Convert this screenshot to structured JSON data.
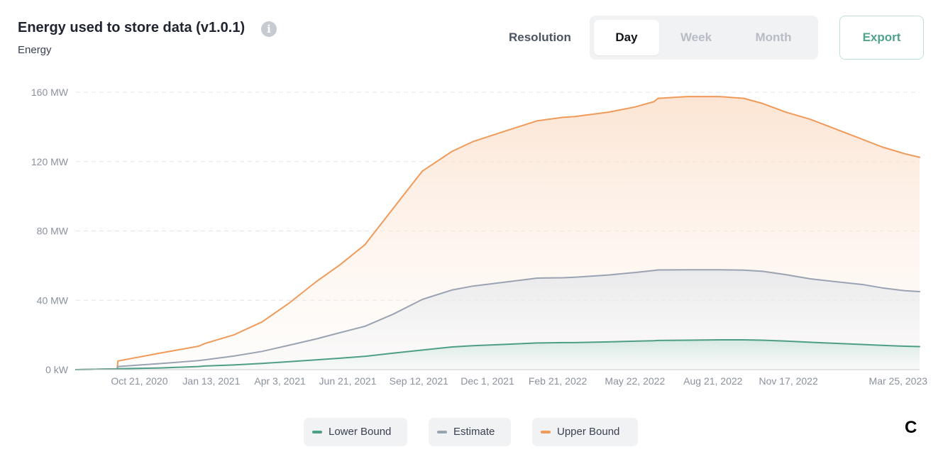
{
  "header": {
    "title": "Energy used to store data (v1.0.1)",
    "info_icon": "info-icon",
    "info_glyph": "i",
    "subtitle": "Energy"
  },
  "controls": {
    "resolution_label": "Resolution",
    "options": [
      "Day",
      "Week",
      "Month"
    ],
    "selected": "Day",
    "export_label": "Export"
  },
  "legend": [
    {
      "label": "Lower Bound",
      "color": "#4e9e87"
    },
    {
      "label": "Estimate",
      "color": "#9aa3b2"
    },
    {
      "label": "Upper Bound",
      "color": "#f09a5a"
    }
  ],
  "corner_label": "C",
  "chart_data": {
    "type": "area",
    "x_type": "date",
    "xlim": [
      "2020-08-08",
      "2023-04-19"
    ],
    "ylim": [
      0,
      160
    ],
    "yticks": [
      0,
      40,
      80,
      120,
      160
    ],
    "ytick_labels": [
      "0 kW",
      "40 MW",
      "80 MW",
      "120 MW",
      "160 MW"
    ],
    "xticks": [
      "2020-10-21",
      "2021-01-13",
      "2021-04-03",
      "2021-06-21",
      "2021-09-12",
      "2021-12-01",
      "2022-02-21",
      "2022-05-22",
      "2022-08-21",
      "2022-11-17",
      "2023-03-25"
    ],
    "xtick_labels": [
      "Oct 21, 2020",
      "Jan 13, 2021",
      "Apr 3, 2021",
      "Jun 21, 2021",
      "Sep 12, 2021",
      "Dec 1, 2021",
      "Feb 21, 2022",
      "May 22, 2022",
      "Aug 21, 2022",
      "Nov 17, 2022",
      "Mar 25, 2023"
    ],
    "grid": true,
    "x": [
      "2020-08-08",
      "2020-09-25",
      "2020-09-26",
      "2020-11-15",
      "2020-12-29",
      "2021-01-05",
      "2021-02-08",
      "2021-03-13",
      "2021-04-14",
      "2021-05-16",
      "2021-06-12",
      "2021-07-11",
      "2021-08-13",
      "2021-09-16",
      "2021-10-21",
      "2021-11-14",
      "2021-12-24",
      "2022-01-28",
      "2022-02-27",
      "2022-03-13",
      "2022-04-21",
      "2022-05-22",
      "2022-06-13",
      "2022-06-18",
      "2022-07-22",
      "2022-08-28",
      "2022-09-26",
      "2022-10-18",
      "2022-11-14",
      "2022-12-12",
      "2023-01-10",
      "2023-02-13",
      "2023-03-06",
      "2023-04-02",
      "2023-04-19"
    ],
    "series": [
      {
        "name": "Lower Bound",
        "color": "#4e9e87",
        "values": [
          0,
          0.4,
          0.5,
          1.0,
          1.8,
          2.1,
          2.7,
          3.6,
          4.6,
          5.7,
          6.6,
          7.7,
          9.5,
          11.3,
          13.1,
          13.8,
          14.6,
          15.4,
          15.6,
          15.6,
          16.0,
          16.4,
          16.7,
          16.8,
          17.0,
          17.2,
          17.2,
          17.0,
          16.5,
          15.8,
          15.2,
          14.5,
          14.0,
          13.5,
          13.3
        ]
      },
      {
        "name": "Estimate",
        "color": "#9aa3b2",
        "values": [
          0,
          0.4,
          1.8,
          3.5,
          5.2,
          5.6,
          7.8,
          10.5,
          14.1,
          17.8,
          21.3,
          25.0,
          32.0,
          40.5,
          46.0,
          48.2,
          50.6,
          52.8,
          53.0,
          53.3,
          54.6,
          56.0,
          57.2,
          57.5,
          57.6,
          57.6,
          57.4,
          56.7,
          54.8,
          52.4,
          50.8,
          49.0,
          47.2,
          45.5,
          45.0
        ]
      },
      {
        "name": "Upper Bound",
        "color": "#f09a5a",
        "values": [
          0,
          0.4,
          5.0,
          9.6,
          13.5,
          15.0,
          20.0,
          27.5,
          38.5,
          51.0,
          60.5,
          72.0,
          93.0,
          114.5,
          126.0,
          131.5,
          138.0,
          143.5,
          145.5,
          146.0,
          148.5,
          151.5,
          154.5,
          156.5,
          157.5,
          157.5,
          156.5,
          153.5,
          148.5,
          144.5,
          139.0,
          132.5,
          128.5,
          124.5,
          122.5
        ]
      }
    ]
  }
}
